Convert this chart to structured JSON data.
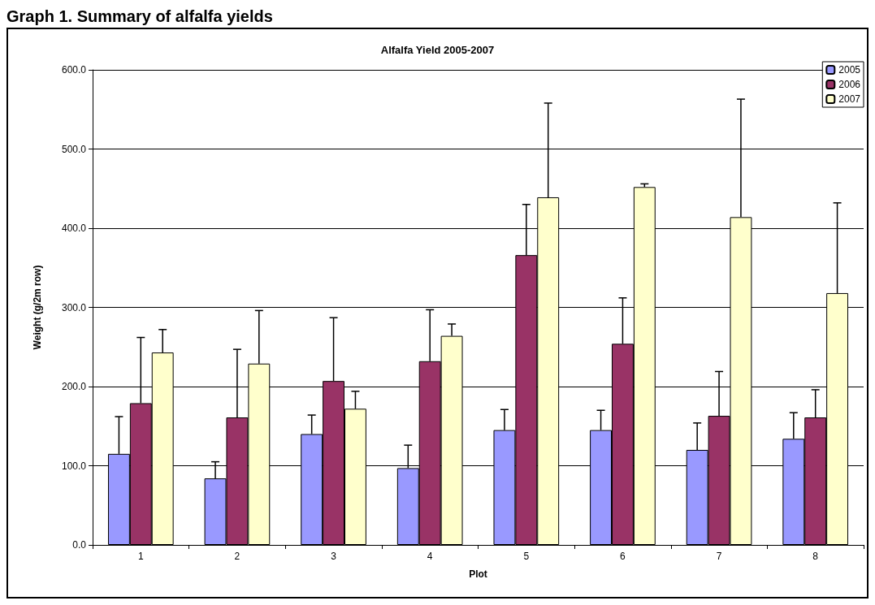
{
  "chart_data": {
    "type": "bar",
    "title": "Graph 1. Summary of alfalfa yields",
    "subtitle": "Alfalfa Yield 2005-2007",
    "xlabel": "Plot",
    "ylabel": "Weight (g/2m row)",
    "categories": [
      "1",
      "2",
      "3",
      "4",
      "5",
      "6",
      "7",
      "8"
    ],
    "series": [
      {
        "name": "2005",
        "color": "#9999ff",
        "values": [
          115,
          84,
          140,
          97,
          145,
          145,
          120,
          134
        ],
        "errors": [
          [
            115,
            162
          ],
          [
            84,
            105
          ],
          [
            140,
            164
          ],
          [
            97,
            126
          ],
          [
            145,
            171
          ],
          [
            145,
            170
          ],
          [
            120,
            154
          ],
          [
            134,
            167
          ]
        ]
      },
      {
        "name": "2006",
        "color": "#993366",
        "values": [
          179,
          161,
          207,
          232,
          366,
          254,
          163,
          161
        ],
        "errors": [
          [
            179,
            262
          ],
          [
            161,
            247
          ],
          [
            207,
            287
          ],
          [
            232,
            297
          ],
          [
            366,
            430
          ],
          [
            254,
            312
          ],
          [
            163,
            219
          ],
          [
            161,
            196
          ]
        ]
      },
      {
        "name": "2007",
        "color": "#ffffcc",
        "values": [
          243,
          229,
          172,
          264,
          439,
          452,
          414,
          318
        ],
        "errors": [
          [
            243,
            272
          ],
          [
            229,
            296
          ],
          [
            172,
            194
          ],
          [
            264,
            279
          ],
          [
            439,
            558
          ],
          [
            452,
            456
          ],
          [
            414,
            563
          ],
          [
            318,
            432
          ]
        ]
      }
    ],
    "ylim": [
      0,
      600
    ],
    "yticks": [
      {
        "value": 0,
        "label": "0.0"
      },
      {
        "value": 100,
        "label": "100.0"
      },
      {
        "value": 200,
        "label": "200.0"
      },
      {
        "value": 300,
        "label": "300.0"
      },
      {
        "value": 400,
        "label": "400.0"
      },
      {
        "value": 500,
        "label": "500.0"
      },
      {
        "value": 600,
        "label": "600.0"
      }
    ],
    "grid": "y",
    "legend": "top right"
  }
}
